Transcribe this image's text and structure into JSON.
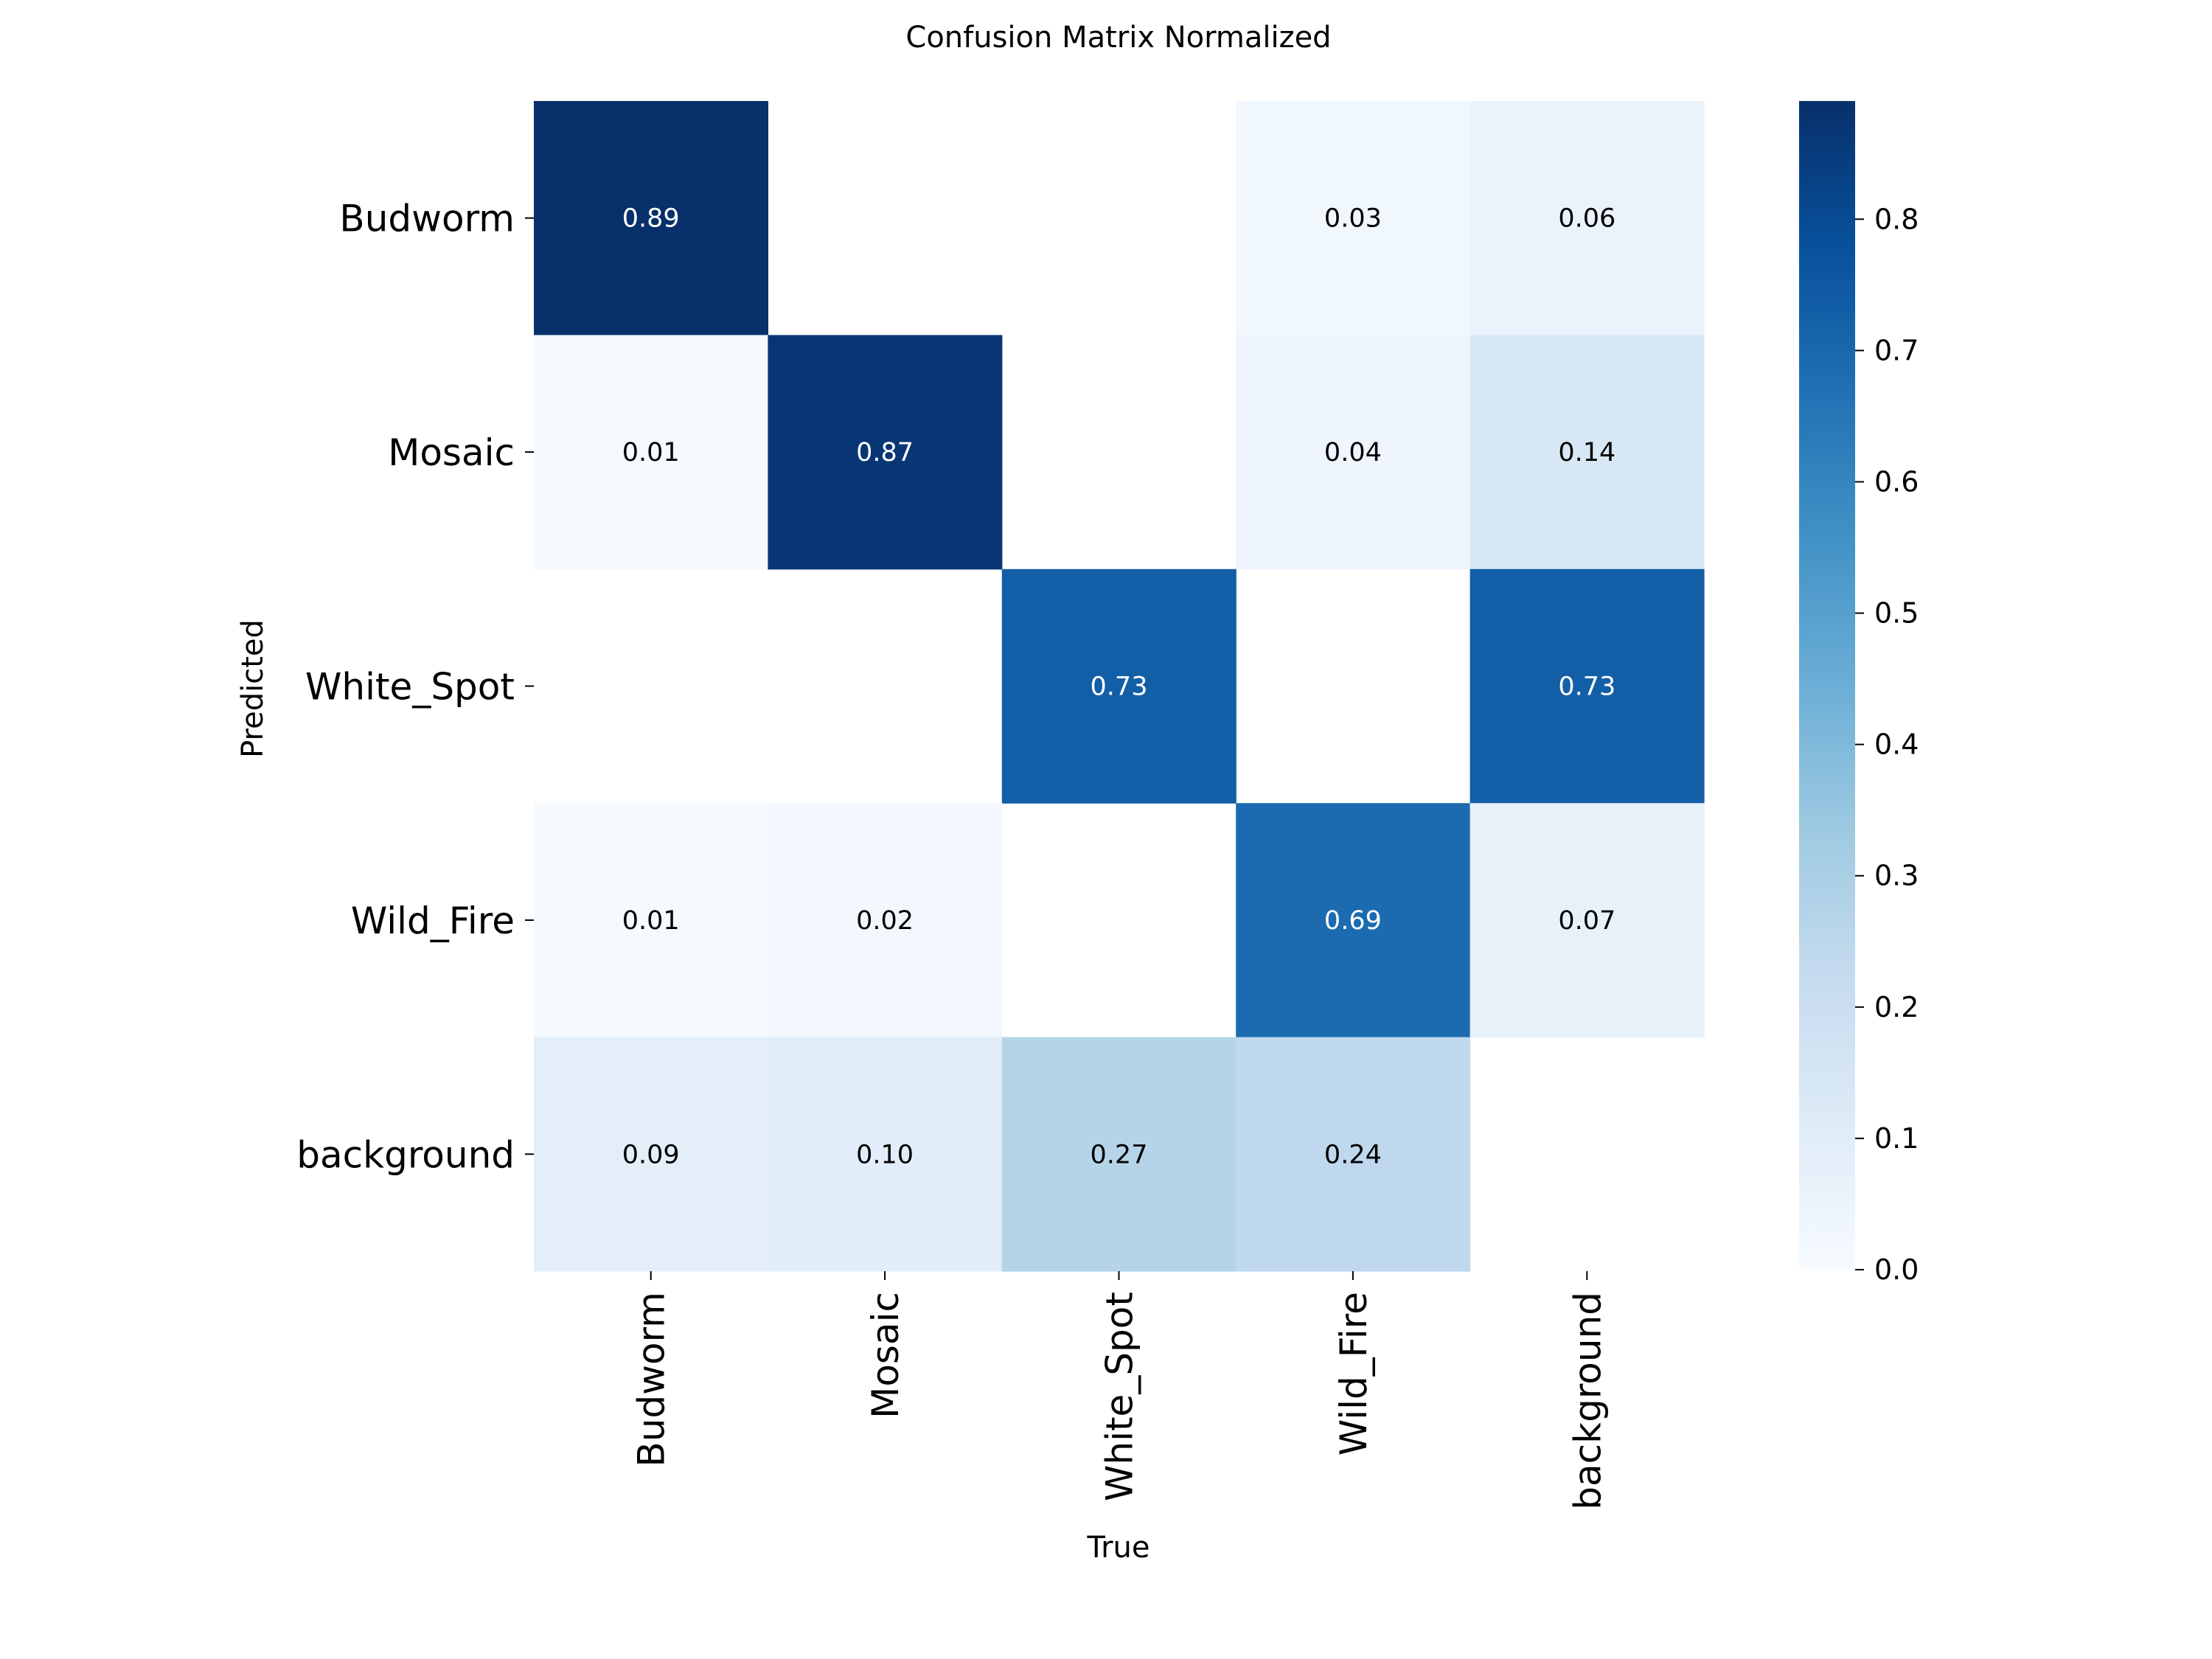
{
  "chart_data": {
    "type": "heatmap",
    "title": "Confusion Matrix Normalized",
    "xlabel": "True",
    "ylabel": "Predicted",
    "x_categories": [
      "Budworm",
      "Mosaic",
      "White_Spot",
      "Wild_Fire",
      "background"
    ],
    "y_categories": [
      "Budworm",
      "Mosaic",
      "White_Spot",
      "Wild_Fire",
      "background"
    ],
    "values": [
      [
        0.89,
        null,
        null,
        0.03,
        0.06
      ],
      [
        0.01,
        0.87,
        null,
        0.04,
        0.14
      ],
      [
        null,
        null,
        0.73,
        null,
        0.73
      ],
      [
        0.01,
        0.02,
        null,
        0.69,
        0.07
      ],
      [
        0.09,
        0.1,
        0.27,
        0.24,
        null
      ]
    ],
    "value_labels": [
      [
        "0.89",
        "",
        "",
        "0.03",
        "0.06"
      ],
      [
        "0.01",
        "0.87",
        "",
        "0.04",
        "0.14"
      ],
      [
        "",
        "",
        "0.73",
        "",
        "0.73"
      ],
      [
        "0.01",
        "0.02",
        "",
        "0.69",
        "0.07"
      ],
      [
        "0.09",
        "0.10",
        "0.27",
        "0.24",
        ""
      ]
    ],
    "colormap": "Blues",
    "colorbar": {
      "range": [
        0,
        0.89
      ],
      "ticks": [
        0.0,
        0.1,
        0.2,
        0.3,
        0.4,
        0.5,
        0.6,
        0.7,
        0.8
      ],
      "tick_labels": [
        "0.0",
        "0.1",
        "0.2",
        "0.3",
        "0.4",
        "0.5",
        "0.6",
        "0.7",
        "0.8"
      ]
    },
    "grid": false,
    "legend": "colorbar-right"
  }
}
